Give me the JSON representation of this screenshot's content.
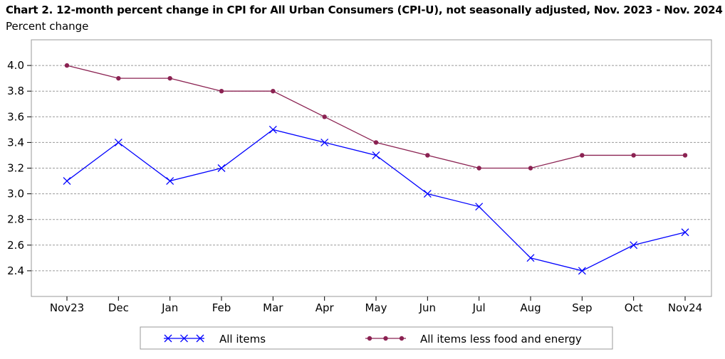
{
  "chart_data": {
    "type": "line",
    "title": "Chart 2. 12-month percent change in CPI for All Urban Consumers (CPI-U), not seasonally adjusted, Nov. 2023 - Nov. 2024",
    "ylabel": "Percent change",
    "xlabel": "",
    "categories": [
      "Nov23",
      "Dec",
      "Jan",
      "Feb",
      "Mar",
      "Apr",
      "May",
      "Jun",
      "Jul",
      "Aug",
      "Sep",
      "Oct",
      "Nov24"
    ],
    "ylim": [
      2.2,
      4.2
    ],
    "yticks": [
      2.4,
      2.6,
      2.8,
      3.0,
      3.2,
      3.4,
      3.6,
      3.8,
      4.0
    ],
    "ytick_labels": [
      "2.4",
      "2.6",
      "2.8",
      "3.0",
      "3.2",
      "3.4",
      "3.6",
      "3.8",
      "4.0"
    ],
    "grid": "horizontal dashed",
    "legend_position": "bottom",
    "series": [
      {
        "name": "All items",
        "color": "#0000ff",
        "marker": "x",
        "values": [
          3.1,
          3.4,
          3.1,
          3.2,
          3.5,
          3.4,
          3.3,
          3.0,
          2.9,
          2.5,
          2.4,
          2.6,
          2.7
        ]
      },
      {
        "name": "All items less food and energy",
        "color": "#8b2252",
        "marker": "circle",
        "values": [
          4.0,
          3.9,
          3.9,
          3.8,
          3.8,
          3.6,
          3.4,
          3.3,
          3.2,
          3.2,
          3.3,
          3.3,
          3.3
        ]
      }
    ]
  }
}
